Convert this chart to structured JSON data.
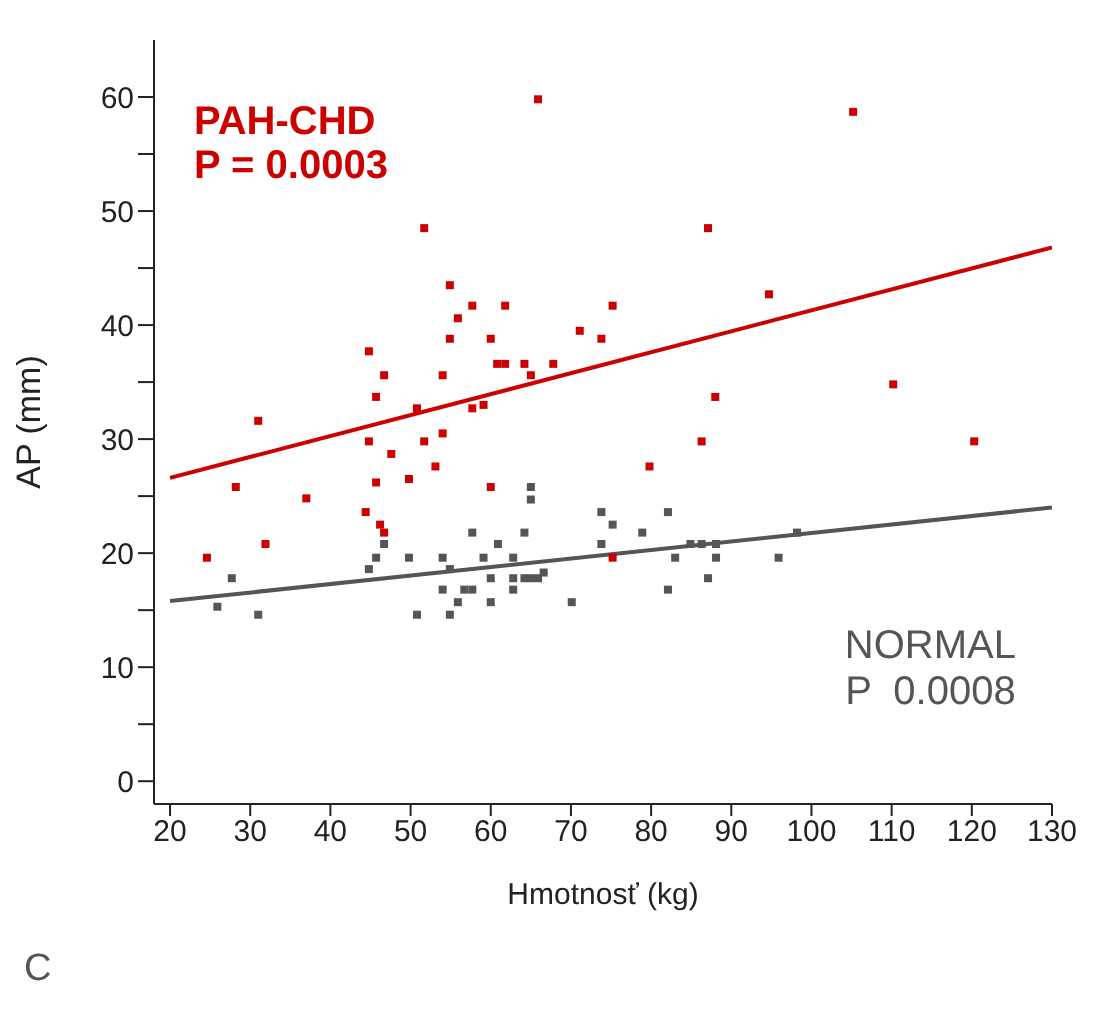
{
  "chart_data": {
    "type": "scatter",
    "xlabel": "Hmotnosť (kg)",
    "ylabel": "AP (mm)",
    "xlim": [
      18,
      130
    ],
    "ylim": [
      -2,
      65
    ],
    "xticks": [
      20,
      30,
      40,
      50,
      60,
      70,
      80,
      90,
      100,
      110,
      120,
      130
    ],
    "yticks": [
      0,
      {
        "value": 5,
        "label": null
      },
      10,
      {
        "value": 15,
        "label": null
      },
      20,
      {
        "value": 25,
        "label": null
      },
      30,
      {
        "value": 35,
        "label": null
      },
      40,
      {
        "value": 45,
        "label": null
      },
      50,
      {
        "value": 55,
        "label": null
      },
      60
    ],
    "grid": false,
    "legend": false,
    "marker": "square",
    "series": [
      {
        "name": "PAH-CHD",
        "color": "#cc0000",
        "x": [
          65.9,
          51.7,
          54.9,
          57.7,
          61.8,
          55.9,
          75.2,
          71.1,
          73.8,
          54.9,
          60.0,
          44.8,
          46.7,
          60.8,
          61.8,
          64.2,
          67.8,
          65.0,
          54.0,
          45.7,
          31.0,
          50.8,
          57.7,
          59.1,
          54.0,
          44.8,
          51.7,
          47.6,
          53.1,
          28.2,
          45.7,
          49.8,
          60.0,
          37.0,
          44.4,
          46.2,
          46.7,
          31.9,
          24.6,
          75.2,
          105.2,
          87.1,
          94.7,
          88.0,
          110.2,
          86.3,
          79.8,
          120.3
        ],
        "values": [
          59.8,
          48.5,
          43.5,
          41.7,
          41.7,
          40.6,
          41.7,
          39.5,
          38.8,
          38.8,
          38.8,
          37.7,
          35.6,
          36.6,
          36.6,
          36.6,
          36.6,
          35.6,
          35.6,
          33.7,
          31.6,
          32.7,
          32.7,
          33.0,
          30.5,
          29.8,
          29.8,
          28.7,
          27.6,
          25.8,
          26.2,
          26.5,
          25.8,
          24.8,
          23.6,
          22.5,
          21.8,
          20.8,
          19.6,
          19.6,
          58.7,
          48.5,
          42.7,
          33.7,
          34.8,
          29.8,
          27.6,
          29.8
        ]
      },
      {
        "name": "NORMAL",
        "color": "#555555",
        "x": [
          65.0,
          65.0,
          73.8,
          75.2,
          57.7,
          64.2,
          46.7,
          60.9,
          73.8,
          45.7,
          49.8,
          54.0,
          59.1,
          62.8,
          44.8,
          54.9,
          27.7,
          60.0,
          62.8,
          64.2,
          65.0,
          65.9,
          66.6,
          54.0,
          56.7,
          57.7,
          62.8,
          55.9,
          60.0,
          70.1,
          25.9,
          31.0,
          50.8,
          54.9,
          82.1,
          78.9,
          84.9,
          86.3,
          88.1,
          98.2,
          83.0,
          88.1,
          95.9,
          87.1,
          82.1
        ],
        "values": [
          25.8,
          24.7,
          23.6,
          22.5,
          21.8,
          21.8,
          20.8,
          20.8,
          20.8,
          19.6,
          19.6,
          19.6,
          19.6,
          19.6,
          18.6,
          18.6,
          17.8,
          17.8,
          17.8,
          17.8,
          17.8,
          17.8,
          18.3,
          16.8,
          16.8,
          16.8,
          16.8,
          15.7,
          15.7,
          15.7,
          15.3,
          14.6,
          14.6,
          14.6,
          23.6,
          21.8,
          20.8,
          20.8,
          20.8,
          21.8,
          19.6,
          19.6,
          19.6,
          17.8,
          16.8
        ]
      },
      {
        "type": "line",
        "marker": "none",
        "color": "#cc0000",
        "x": [
          20,
          130
        ],
        "values": [
          26.6,
          46.8
        ]
      },
      {
        "type": "line",
        "marker": "none",
        "color": "#555555",
        "x": [
          20,
          130
        ],
        "values": [
          15.8,
          24.0
        ]
      }
    ],
    "annotations": [
      "P = 0.0003",
      "P  0.0008",
      "C"
    ]
  }
}
